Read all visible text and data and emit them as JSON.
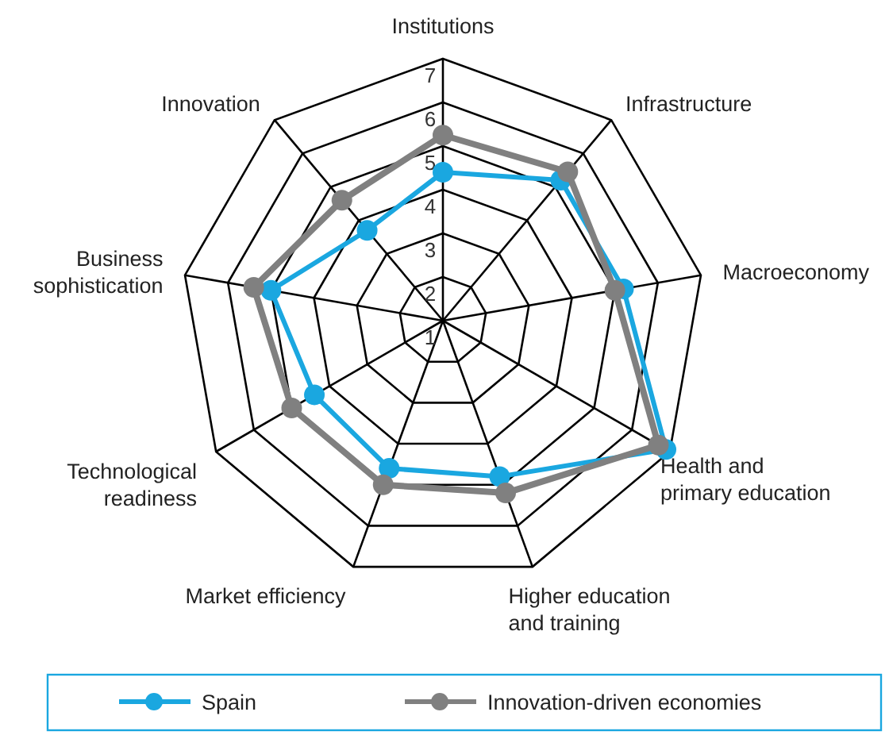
{
  "chart_data": {
    "type": "radar",
    "categories": [
      "Institutions",
      "Infrastructure",
      "Macroeconomy",
      "Health and\nprimary education",
      "Higher education\nand training",
      "Market efficiency",
      "Technological\nreadiness",
      "Business\nsophistication",
      "Innovation"
    ],
    "ylim": [
      1,
      7
    ],
    "yticks": [
      1,
      2,
      3,
      4,
      5,
      6,
      7
    ],
    "legend": "bottom",
    "marker": "circle",
    "grid": true,
    "series": [
      {
        "name": "Spain",
        "color": "#1aa7e0",
        "values": [
          4.4,
          5.2,
          5.2,
          6.9,
          4.8,
          4.6,
          4.4,
          5.0,
          3.7
        ]
      },
      {
        "name": "Innovation-driven economies",
        "color": "#808080",
        "values": [
          5.25,
          5.45,
          5.0,
          6.7,
          5.2,
          5.0,
          5.0,
          5.4,
          4.6
        ]
      }
    ]
  }
}
